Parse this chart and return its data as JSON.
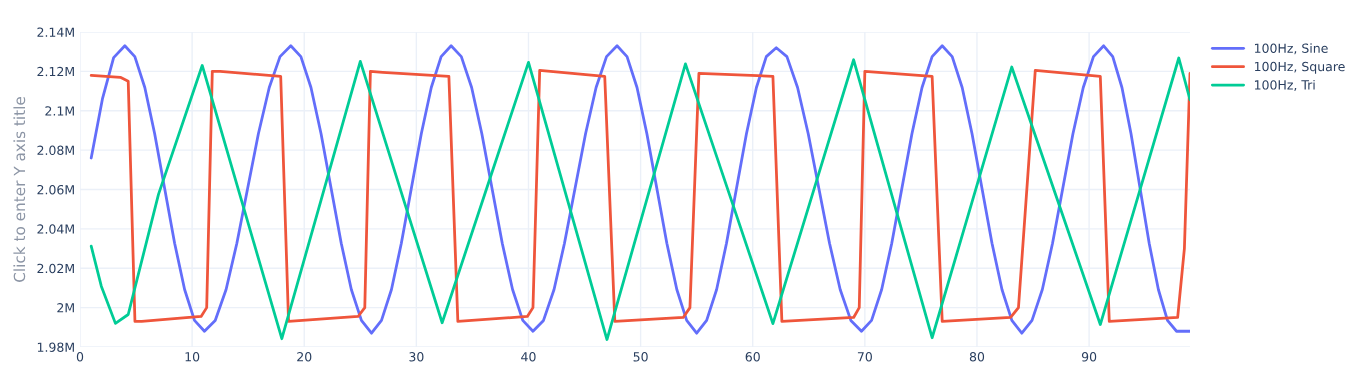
{
  "chart_data": {
    "type": "line",
    "ylabel": "Click to enter Y axis title",
    "xlim": [
      0,
      99
    ],
    "xticks": [
      0,
      10,
      20,
      30,
      40,
      50,
      60,
      70,
      80,
      90
    ],
    "ylim": [
      1980000,
      2140000
    ],
    "yticks": [
      {
        "value": 1980000,
        "label": "1.98M"
      },
      {
        "value": 2000000,
        "label": "2M"
      },
      {
        "value": 2020000,
        "label": "2.02M"
      },
      {
        "value": 2040000,
        "label": "2.04M"
      },
      {
        "value": 2060000,
        "label": "2.06M"
      },
      {
        "value": 2080000,
        "label": "2.08M"
      },
      {
        "value": 2100000,
        "label": "2.1M"
      },
      {
        "value": 2120000,
        "label": "2.12M"
      },
      {
        "value": 2140000,
        "label": "2.14M"
      }
    ],
    "grid": true,
    "legend": "top right",
    "marker": "none",
    "line_style": "solid",
    "series": [
      {
        "name": "100Hz, Sine",
        "color": "#636efa",
        "x": [
          1,
          2,
          3,
          4.0,
          4.89,
          5.78,
          6.66,
          7.55,
          8.44,
          9.33,
          10.21,
          11.1,
          12.06,
          13.03,
          13.99,
          14.95,
          15.91,
          16.88,
          17.84,
          18.8,
          19.7,
          20.6,
          21.5,
          22.4,
          23.3,
          24.2,
          25.1,
          26.0,
          26.89,
          27.78,
          28.66,
          29.55,
          30.44,
          31.33,
          32.21,
          33.1,
          34.01,
          34.93,
          35.84,
          36.75,
          37.66,
          38.58,
          39.49,
          40.4,
          41.34,
          42.28,
          43.21,
          44.15,
          45.09,
          46.03,
          46.96,
          47.9,
          48.79,
          49.68,
          50.56,
          51.45,
          52.34,
          53.23,
          54.11,
          55.0,
          55.89,
          56.78,
          57.66,
          58.55,
          59.44,
          60.33,
          61.21,
          62.1,
          63.05,
          64.0,
          64.95,
          65.9,
          66.85,
          67.8,
          68.75,
          69.7,
          70.6,
          71.5,
          72.4,
          73.3,
          74.2,
          75.1,
          76.0,
          76.9,
          77.79,
          78.68,
          79.56,
          80.45,
          81.34,
          82.23,
          83.11,
          84.0,
          84.91,
          85.83,
          86.74,
          87.65,
          88.56,
          89.48,
          90.39,
          91.3,
          92.11,
          92.93,
          93.74,
          94.55,
          95.36,
          96.18,
          96.99,
          97.8,
          99
        ],
        "values": [
          2076000,
          2106000,
          2127000,
          2133000,
          2127500,
          2111800,
          2088300,
          2060500,
          2032700,
          2009200,
          1993500,
          1988000,
          1993500,
          2009200,
          2032700,
          2060500,
          2088300,
          2111800,
          2127500,
          2133000,
          2127500,
          2111800,
          2088300,
          2060500,
          2032700,
          2009200,
          1993500,
          1987000,
          1993500,
          2009200,
          2032700,
          2060500,
          2088300,
          2111800,
          2127500,
          2133000,
          2127500,
          2111800,
          2088300,
          2060500,
          2032700,
          2009200,
          1993500,
          1988000,
          1993500,
          2009200,
          2032700,
          2060500,
          2088300,
          2111800,
          2127500,
          2133000,
          2127500,
          2111800,
          2088300,
          2060500,
          2032700,
          2009200,
          1993500,
          1987000,
          1993500,
          2009200,
          2032700,
          2060500,
          2088300,
          2111800,
          2127500,
          2132000,
          2127500,
          2111800,
          2088300,
          2060500,
          2032700,
          2009200,
          1993500,
          1988000,
          1993500,
          2009200,
          2032700,
          2060500,
          2088300,
          2111800,
          2127500,
          2133000,
          2127500,
          2111800,
          2088300,
          2060500,
          2032700,
          2009200,
          1993500,
          1987000,
          1993500,
          2009200,
          2032700,
          2060500,
          2088300,
          2111800,
          2127500,
          2133000,
          2127500,
          2111800,
          2088300,
          2060500,
          2032700,
          2009200,
          1993500,
          1988000,
          1988000
        ]
      },
      {
        "name": "100Hz, Square",
        "color": "#ef553b",
        "x": [
          1,
          3.6,
          4.3,
          4.9,
          5.5,
          10.8,
          11.3,
          11.8,
          12.5,
          17.9,
          18.6,
          24.8,
          25.4,
          25.9,
          27,
          32.9,
          33.7,
          39.9,
          40.4,
          41.0,
          46.8,
          47.7,
          53.8,
          54.4,
          55.2,
          61.8,
          62.6,
          69.0,
          69.5,
          70.0,
          76.0,
          76.9,
          83.0,
          83.7,
          85.2,
          91.0,
          91.8,
          97.9,
          98.5,
          99
        ],
        "values": [
          2118000,
          2117000,
          2115000,
          1993000,
          1993000,
          1995500,
          2000000,
          2120000,
          2120000,
          2117500,
          1993000,
          1995500,
          2000000,
          2120000,
          2119500,
          2117500,
          1993000,
          1995500,
          2000000,
          2120500,
          2117500,
          1993000,
          1995000,
          2000000,
          2119000,
          2117500,
          1993000,
          1995000,
          2000000,
          2120000,
          2117500,
          1993000,
          1995000,
          2000000,
          2120500,
          2117500,
          1993000,
          1995000,
          2030000,
          2119000
        ]
      },
      {
        "name": "100Hz, Tri",
        "color": "#00cc96",
        "x": [
          1,
          1.9,
          3.16,
          4.3,
          7.0,
          10.9,
          14.45,
          18.0,
          21.5,
          25.0,
          28.65,
          32.3,
          36.15,
          40.0,
          43.5,
          47.0,
          50.5,
          54.0,
          57.9,
          61.8,
          65.4,
          69.0,
          72.5,
          76.0,
          79.55,
          83.1,
          87.05,
          91.0,
          94.5,
          98.0,
          99
        ],
        "values": [
          2031200,
          2010900,
          1992000,
          1996500,
          2057500,
          2123000,
          2053600,
          1984200,
          2054600,
          2125100,
          2058700,
          1992300,
          2058500,
          2124600,
          2054200,
          1983800,
          2053800,
          2123800,
          2057900,
          1991900,
          2058900,
          2125900,
          2055300,
          1984700,
          2053500,
          2122200,
          2056800,
          1991400,
          2059100,
          2126800,
          2105600
        ]
      }
    ]
  }
}
